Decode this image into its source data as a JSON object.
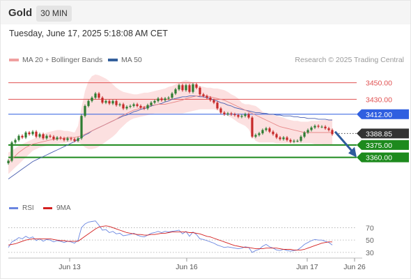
{
  "header": {
    "symbol": "Gold",
    "timeframe": "30 MIN"
  },
  "datetime": "Tuesday, June 17, 2025 5:18:08 AM CET",
  "legend": {
    "ma20_label": "MA 20 + Bollinger Bands",
    "ma50_label": "MA 50",
    "credit": "Research © 2025 Trading Central"
  },
  "rsi_legend": {
    "rsi_label": "RSI",
    "ma_label": "9MA"
  },
  "colors": {
    "up": "#2e7d32",
    "down": "#c62828",
    "ma20": "#e88a8a",
    "ma50": "#4a5fb0",
    "band": "#fbd5d5",
    "resistance": "#e05050",
    "pivot": "#2f5fe0",
    "support": "#1d8a1d",
    "last": "#333333",
    "arrow": "#2e5c9c",
    "rsi": "#6a86e0",
    "rsi_ma": "#d42020"
  },
  "chart_data": [
    {
      "type": "candlestick",
      "title": "",
      "x_ticks": [
        "Jun 13",
        "Jun 16",
        "Jun 17",
        "Jun 26"
      ],
      "ylim": [
        3316,
        3469
      ],
      "levels": [
        {
          "label": "3450.00",
          "value": 3450.0,
          "kind": "resistance"
        },
        {
          "label": "3430.00",
          "value": 3430.0,
          "kind": "resistance"
        },
        {
          "label": "3412.00",
          "value": 3412.0,
          "kind": "pivot"
        },
        {
          "label": "3388.85",
          "value": 3388.85,
          "kind": "last"
        },
        {
          "label": "3375.00",
          "value": 3375.0,
          "kind": "support"
        },
        {
          "label": "3360.00",
          "value": 3360.0,
          "kind": "support"
        }
      ],
      "forecast_arrow": {
        "from": 3391,
        "to": 3360
      },
      "closes": [
        3356,
        3378,
        3381,
        3386,
        3384,
        3390,
        3388,
        3391,
        3385,
        3388,
        3383,
        3386,
        3385,
        3382,
        3384,
        3383,
        3381,
        3383,
        3382,
        3380,
        3383,
        3410,
        3422,
        3428,
        3432,
        3437,
        3432,
        3426,
        3428,
        3425,
        3428,
        3423,
        3424,
        3419,
        3421,
        3422,
        3424,
        3422,
        3420,
        3419,
        3423,
        3426,
        3428,
        3431,
        3429,
        3431,
        3432,
        3437,
        3442,
        3447,
        3441,
        3447,
        3439,
        3448,
        3444,
        3436,
        3434,
        3432,
        3429,
        3426,
        3419,
        3414,
        3412,
        3413,
        3412,
        3411,
        3409,
        3410,
        3412,
        3408,
        3385,
        3387,
        3389,
        3393,
        3395,
        3391,
        3388,
        3384,
        3382,
        3384,
        3381,
        3379,
        3380,
        3380,
        3385,
        3390,
        3393,
        3396,
        3398,
        3397,
        3397,
        3395,
        3393,
        3388
      ],
      "ma20": [
        3353,
        3358,
        3362,
        3366,
        3369,
        3372,
        3374,
        3376,
        3377,
        3378,
        3379,
        3380,
        3381,
        3382,
        3382,
        3383,
        3383,
        3384,
        3384,
        3384,
        3385,
        3386,
        3388,
        3390,
        3392,
        3394,
        3396,
        3398,
        3400,
        3402,
        3404,
        3406,
        3409,
        3411,
        3413,
        3415,
        3417,
        3418,
        3420,
        3421,
        3422,
        3423,
        3423,
        3424,
        3424,
        3424,
        3425,
        3426,
        3427,
        3428,
        3429,
        3431,
        3432,
        3433,
        3434,
        3434,
        3434,
        3434,
        3433,
        3432,
        3431,
        3430,
        3429,
        3427,
        3425,
        3423,
        3421,
        3419,
        3417,
        3415,
        3413,
        3411,
        3409,
        3407,
        3405,
        3403,
        3401,
        3399,
        3397,
        3396,
        3395,
        3394,
        3393,
        3392,
        3391,
        3390,
        3390,
        3390,
        3390,
        3390,
        3390,
        3390,
        3390,
        3390
      ],
      "ma50": [
        3334,
        3337,
        3340,
        3343,
        3346,
        3349,
        3352,
        3355,
        3357,
        3359,
        3361,
        3363,
        3365,
        3367,
        3369,
        3371,
        3373,
        3375,
        3377,
        3379,
        3382,
        3384,
        3387,
        3389,
        3392,
        3394,
        3396,
        3398,
        3400,
        3402,
        3404,
        3406,
        3408,
        3410,
        3411,
        3413,
        3415,
        3416,
        3418,
        3419,
        3420,
        3422,
        3423,
        3424,
        3425,
        3427,
        3428,
        3430,
        3431,
        3432,
        3433,
        3433,
        3434,
        3434,
        3434,
        3433,
        3433,
        3432,
        3431,
        3429,
        3428,
        3426,
        3425,
        3423,
        3422,
        3420,
        3419,
        3418,
        3417,
        3416,
        3415,
        3414,
        3414,
        3413,
        3413,
        3412,
        3412,
        3411,
        3411,
        3410,
        3410,
        3410,
        3409,
        3409,
        3408,
        3408,
        3407,
        3407,
        3407,
        3406,
        3406,
        3406,
        3405,
        3405
      ],
      "bb_upper": [
        3366,
        3368,
        3371,
        3374,
        3376,
        3378,
        3380,
        3382,
        3384,
        3386,
        3388,
        3390,
        3391,
        3392,
        3393,
        3393,
        3392,
        3392,
        3391,
        3390,
        3398,
        3420,
        3440,
        3452,
        3458,
        3460,
        3459,
        3457,
        3455,
        3452,
        3448,
        3444,
        3441,
        3439,
        3438,
        3437,
        3436,
        3436,
        3437,
        3438,
        3438,
        3439,
        3440,
        3441,
        3442,
        3443,
        3445,
        3446,
        3448,
        3450,
        3452,
        3453,
        3452,
        3450,
        3448,
        3446,
        3445,
        3444,
        3444,
        3443,
        3443,
        3442,
        3441,
        3439,
        3436,
        3434,
        3431,
        3426,
        3424,
        3424,
        3423,
        3422,
        3419,
        3415,
        3413,
        3412,
        3411,
        3410,
        3409,
        3408,
        3406,
        3405,
        3404,
        3404,
        3403,
        3403,
        3403,
        3404,
        3404,
        3404,
        3405,
        3405,
        3406,
        3406
      ],
      "bb_lower": [
        3340,
        3344,
        3348,
        3352,
        3356,
        3360,
        3364,
        3368,
        3370,
        3372,
        3373,
        3374,
        3375,
        3376,
        3376,
        3377,
        3377,
        3378,
        3378,
        3378,
        3378,
        3376,
        3372,
        3370,
        3370,
        3371,
        3373,
        3376,
        3379,
        3382,
        3385,
        3389,
        3394,
        3398,
        3402,
        3405,
        3407,
        3408,
        3409,
        3410,
        3411,
        3412,
        3413,
        3413,
        3413,
        3413,
        3413,
        3413,
        3413,
        3413,
        3413,
        3414,
        3415,
        3416,
        3417,
        3418,
        3418,
        3418,
        3418,
        3418,
        3417,
        3415,
        3412,
        3410,
        3408,
        3405,
        3402,
        3400,
        3398,
        3394,
        3385,
        3380,
        3378,
        3378,
        3378,
        3378,
        3378,
        3377,
        3377,
        3377,
        3377,
        3377,
        3377,
        3377,
        3377,
        3377,
        3377,
        3377,
        3376,
        3376,
        3376,
        3375,
        3375,
        3375
      ]
    },
    {
      "type": "line",
      "title": "",
      "ylim": [
        22,
        84
      ],
      "y_ticks": [
        70,
        50,
        30
      ],
      "series": [
        {
          "name": "RSI",
          "values": [
            38,
            47,
            50,
            54,
            52,
            56,
            53,
            55,
            49,
            52,
            48,
            51,
            50,
            47,
            49,
            48,
            46,
            48,
            47,
            45,
            50,
            70,
            76,
            79,
            80,
            81,
            74,
            66,
            67,
            62,
            64,
            60,
            61,
            57,
            58,
            59,
            61,
            58,
            56,
            55,
            58,
            61,
            62,
            64,
            62,
            64,
            63,
            64,
            65,
            66,
            60,
            64,
            56,
            63,
            59,
            52,
            51,
            49,
            47,
            45,
            42,
            40,
            38,
            39,
            38,
            37,
            36,
            37,
            39,
            38,
            30,
            33,
            35,
            40,
            43,
            39,
            37,
            34,
            33,
            35,
            33,
            32,
            33,
            34,
            38,
            43,
            46,
            49,
            51,
            50,
            50,
            48,
            46,
            42
          ]
        },
        {
          "name": "9MA",
          "values": [
            42,
            43,
            44,
            46,
            48,
            50,
            51,
            52,
            52,
            52,
            52,
            52,
            52,
            51,
            50,
            49,
            49,
            48,
            48,
            48,
            48,
            52,
            56,
            60,
            64,
            68,
            71,
            72,
            73,
            72,
            70,
            68,
            66,
            64,
            62,
            61,
            60,
            59,
            59,
            58,
            58,
            59,
            59,
            60,
            61,
            61,
            62,
            63,
            63,
            63,
            63,
            63,
            62,
            62,
            61,
            60,
            58,
            56,
            55,
            53,
            51,
            49,
            47,
            45,
            43,
            41,
            40,
            39,
            38,
            38,
            37,
            36,
            36,
            36,
            37,
            37,
            37,
            37,
            36,
            35,
            35,
            35,
            34,
            34,
            34,
            35,
            37,
            39,
            41,
            43,
            45,
            46,
            47,
            47
          ]
        }
      ]
    }
  ]
}
